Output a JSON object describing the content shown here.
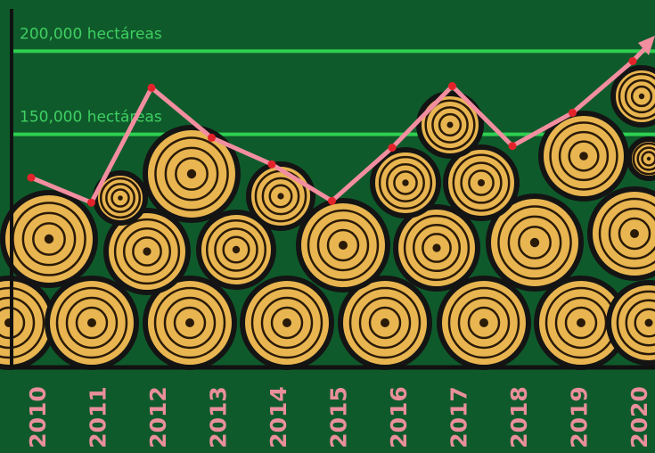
{
  "chart_data": {
    "type": "line",
    "categories": [
      "2010",
      "2011",
      "2012",
      "2013",
      "2014",
      "2015",
      "2016",
      "2017",
      "2018",
      "2019",
      "2020"
    ],
    "series": [
      {
        "color": "#f28ea0",
        "values": [
          124000,
          109000,
          178000,
          148000,
          132000,
          110000,
          142000,
          179000,
          143000,
          163000,
          194000
        ]
      }
    ],
    "ylim": [
      10000,
      220000
    ],
    "yticks": [
      {
        "value": 150000,
        "label": "150,000 hectáreas"
      },
      {
        "value": 200000,
        "label": "200,000 hectáreas"
      }
    ],
    "grid": true
  }
}
